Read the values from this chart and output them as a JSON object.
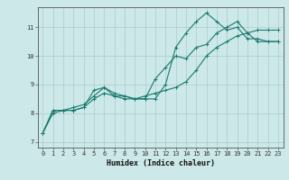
{
  "title": "",
  "xlabel": "Humidex (Indice chaleur)",
  "bg_color": "#cce8e8",
  "line_color": "#1a7a6e",
  "grid_color": "#aacccc",
  "xlim": [
    -0.5,
    23.5
  ],
  "ylim": [
    6.8,
    11.7
  ],
  "series": [
    [
      7.3,
      8.1,
      8.1,
      8.1,
      8.2,
      8.8,
      8.9,
      8.6,
      8.6,
      8.5,
      8.5,
      8.5,
      9.0,
      10.3,
      10.8,
      11.2,
      11.5,
      11.2,
      10.9,
      11.0,
      10.6,
      10.6,
      10.5,
      10.5
    ],
    [
      7.3,
      8.1,
      8.1,
      8.1,
      8.2,
      8.5,
      8.7,
      8.6,
      8.5,
      8.5,
      8.5,
      9.2,
      9.6,
      10.0,
      9.9,
      10.3,
      10.4,
      10.8,
      11.0,
      11.2,
      10.8,
      10.5,
      10.5,
      10.5
    ],
    [
      7.3,
      8.0,
      8.1,
      8.2,
      8.3,
      8.6,
      8.9,
      8.7,
      8.6,
      8.5,
      8.6,
      8.7,
      8.8,
      8.9,
      9.1,
      9.5,
      10.0,
      10.3,
      10.5,
      10.7,
      10.8,
      10.9,
      10.9,
      10.9
    ]
  ],
  "xticks": [
    0,
    1,
    2,
    3,
    4,
    5,
    6,
    7,
    8,
    9,
    10,
    11,
    12,
    13,
    14,
    15,
    16,
    17,
    18,
    19,
    20,
    21,
    22,
    23
  ],
  "yticks": [
    7,
    8,
    9,
    10,
    11
  ],
  "tick_fontsize": 5.0,
  "xlabel_fontsize": 6.0
}
